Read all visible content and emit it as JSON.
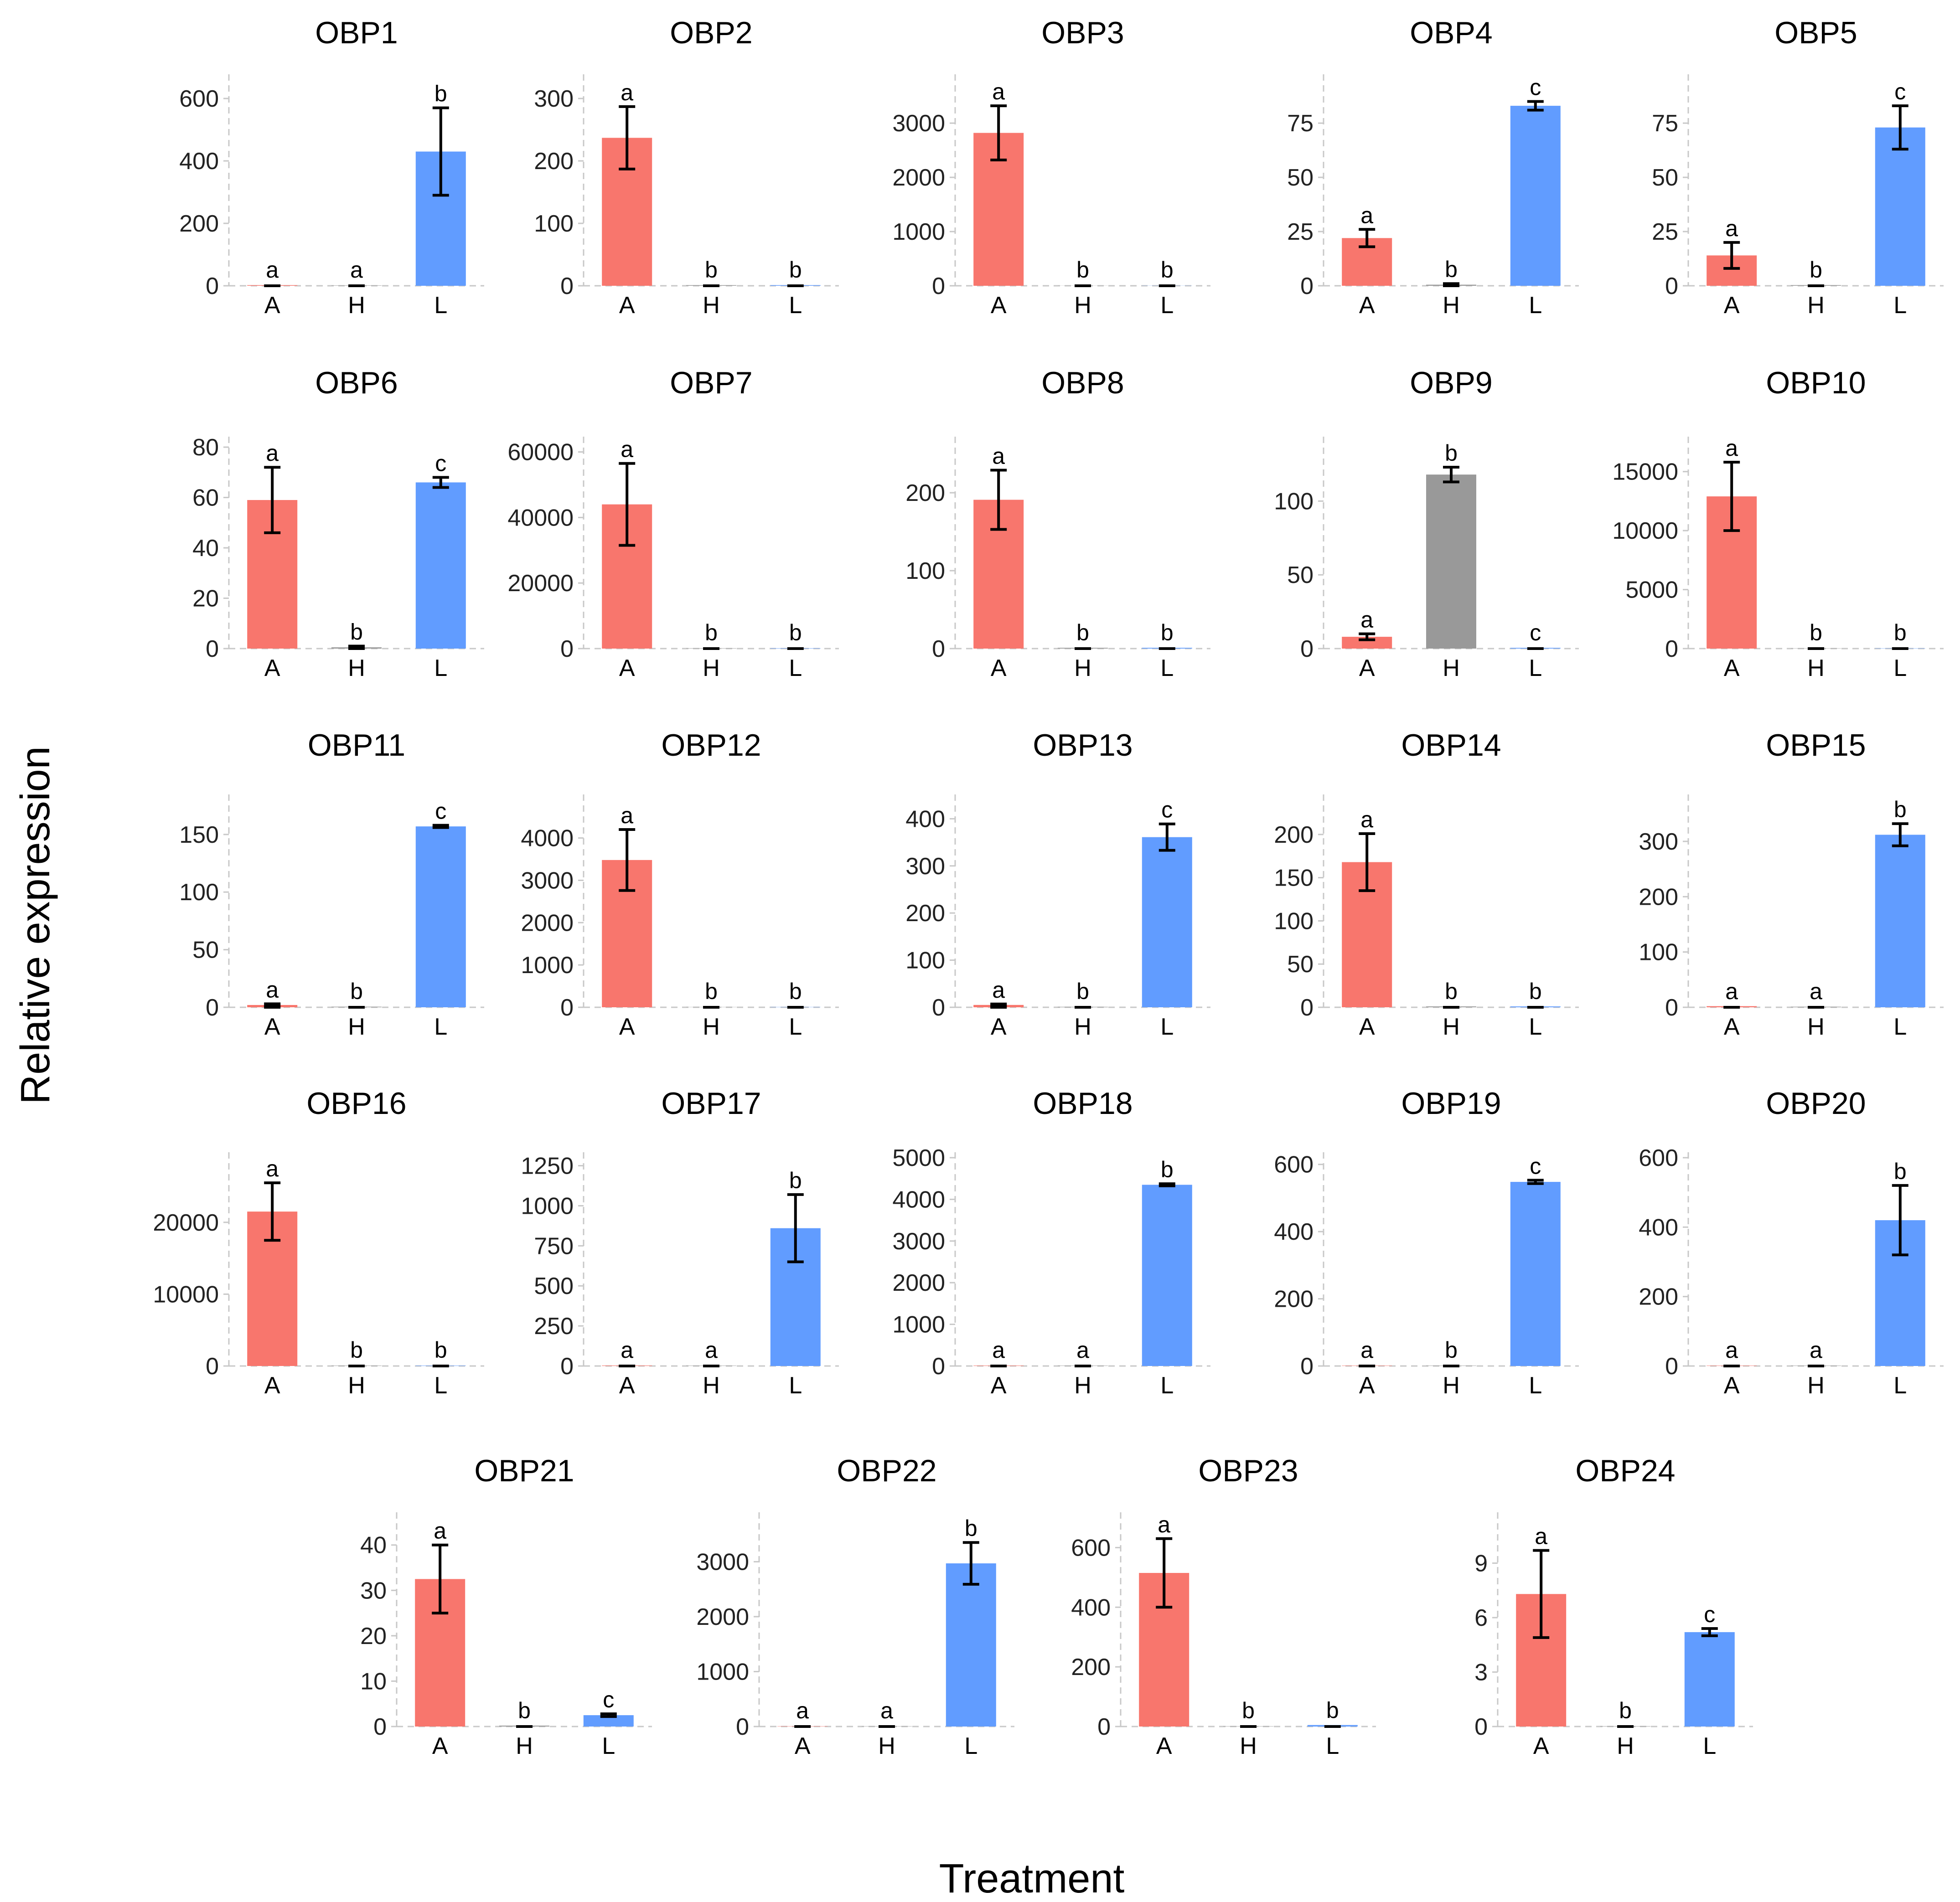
{
  "figure": {
    "ylabel": "Relative expression",
    "xlabel": "Treatment",
    "colors": {
      "A": "#F8766D",
      "H": "#999999",
      "L": "#619CFF"
    }
  },
  "chart_data": [
    {
      "type": "bar",
      "title": "OBP1",
      "categories": [
        "A",
        "H",
        "L"
      ],
      "values": [
        2,
        1,
        430
      ],
      "errors": [
        1,
        1,
        140
      ],
      "letters": [
        "a",
        "a",
        "b"
      ],
      "yticks": [
        0,
        200,
        400,
        600
      ],
      "ylim": [
        0,
        660
      ]
    },
    {
      "type": "bar",
      "title": "OBP2",
      "categories": [
        "A",
        "H",
        "L"
      ],
      "values": [
        237,
        1,
        1
      ],
      "errors": [
        50,
        1,
        1
      ],
      "letters": [
        "a",
        "b",
        "b"
      ],
      "yticks": [
        0,
        100,
        200,
        300
      ],
      "ylim": [
        0,
        330
      ]
    },
    {
      "type": "bar",
      "title": "OBP3",
      "categories": [
        "A",
        "H",
        "L"
      ],
      "values": [
        2820,
        2,
        2
      ],
      "errors": [
        500,
        2,
        2
      ],
      "letters": [
        "a",
        "b",
        "b"
      ],
      "yticks": [
        0,
        1000,
        2000,
        3000
      ],
      "ylim": [
        0,
        3800
      ]
    },
    {
      "type": "bar",
      "title": "OBP4",
      "categories": [
        "A",
        "H",
        "L"
      ],
      "values": [
        22,
        0.5,
        83
      ],
      "errors": [
        4,
        0.5,
        2
      ],
      "letters": [
        "a",
        "b",
        "c"
      ],
      "yticks": [
        0,
        25,
        50,
        75
      ],
      "ylim": [
        0,
        95
      ]
    },
    {
      "type": "bar",
      "title": "OBP5",
      "categories": [
        "A",
        "H",
        "L"
      ],
      "values": [
        14,
        0.3,
        73
      ],
      "errors": [
        6,
        0.3,
        10
      ],
      "letters": [
        "a",
        "b",
        "c"
      ],
      "yticks": [
        0,
        25,
        50,
        75
      ],
      "ylim": [
        0,
        95
      ]
    },
    {
      "type": "bar",
      "title": "OBP6",
      "categories": [
        "A",
        "H",
        "L"
      ],
      "values": [
        59,
        0.5,
        66
      ],
      "errors": [
        13,
        0.5,
        2
      ],
      "letters": [
        "a",
        "b",
        "c"
      ],
      "yticks": [
        0,
        20,
        40,
        60,
        80
      ],
      "ylim": [
        0,
        82
      ]
    },
    {
      "type": "bar",
      "title": "OBP7",
      "categories": [
        "A",
        "H",
        "L"
      ],
      "values": [
        44000,
        100,
        100
      ],
      "errors": [
        12500,
        100,
        100
      ],
      "letters": [
        "a",
        "b",
        "b"
      ],
      "yticks": [
        0,
        20000,
        40000,
        60000
      ],
      "ylim": [
        0,
        63000
      ]
    },
    {
      "type": "bar",
      "title": "OBP8",
      "categories": [
        "A",
        "H",
        "L"
      ],
      "values": [
        191,
        1,
        1
      ],
      "errors": [
        38,
        1,
        1
      ],
      "letters": [
        "a",
        "b",
        "b"
      ],
      "yticks": [
        0,
        100,
        200
      ],
      "ylim": [
        0,
        265
      ]
    },
    {
      "type": "bar",
      "title": "OBP9",
      "categories": [
        "A",
        "H",
        "L"
      ],
      "values": [
        8,
        118,
        0.5
      ],
      "errors": [
        2,
        5,
        0.5
      ],
      "letters": [
        "a",
        "b",
        "c"
      ],
      "yticks": [
        0,
        50,
        100
      ],
      "ylim": [
        0,
        140
      ]
    },
    {
      "type": "bar",
      "title": "OBP10",
      "categories": [
        "A",
        "H",
        "L"
      ],
      "values": [
        12900,
        20,
        20
      ],
      "errors": [
        2900,
        20,
        20
      ],
      "letters": [
        "a",
        "b",
        "b"
      ],
      "yticks": [
        0,
        5000,
        10000,
        15000
      ],
      "ylim": [
        0,
        17500
      ]
    },
    {
      "type": "bar",
      "title": "OBP11",
      "categories": [
        "A",
        "H",
        "L"
      ],
      "values": [
        2,
        0.5,
        157
      ],
      "errors": [
        1,
        0.5,
        1
      ],
      "letters": [
        "a",
        "b",
        "c"
      ],
      "yticks": [
        0,
        50,
        100,
        150
      ],
      "ylim": [
        0,
        180
      ]
    },
    {
      "type": "bar",
      "title": "OBP12",
      "categories": [
        "A",
        "H",
        "L"
      ],
      "values": [
        3480,
        5,
        5
      ],
      "errors": [
        720,
        5,
        5
      ],
      "letters": [
        "a",
        "b",
        "b"
      ],
      "yticks": [
        0,
        1000,
        2000,
        3000,
        4000
      ],
      "ylim": [
        0,
        4900
      ]
    },
    {
      "type": "bar",
      "title": "OBP13",
      "categories": [
        "A",
        "H",
        "L"
      ],
      "values": [
        5,
        1,
        361
      ],
      "errors": [
        2,
        1,
        28
      ],
      "letters": [
        "a",
        "b",
        "c"
      ],
      "yticks": [
        0,
        100,
        200,
        300,
        400
      ],
      "ylim": [
        0,
        440
      ]
    },
    {
      "type": "bar",
      "title": "OBP14",
      "categories": [
        "A",
        "H",
        "L"
      ],
      "values": [
        168,
        1,
        1
      ],
      "errors": [
        33,
        1,
        1
      ],
      "letters": [
        "a",
        "b",
        "b"
      ],
      "yticks": [
        0,
        50,
        100,
        150,
        200
      ],
      "ylim": [
        0,
        240
      ]
    },
    {
      "type": "bar",
      "title": "OBP15",
      "categories": [
        "A",
        "H",
        "L"
      ],
      "values": [
        2,
        1,
        312
      ],
      "errors": [
        1,
        1,
        20
      ],
      "letters": [
        "a",
        "a",
        "b"
      ],
      "yticks": [
        0,
        100,
        200,
        300
      ],
      "ylim": [
        0,
        375
      ]
    },
    {
      "type": "bar",
      "title": "OBP16",
      "categories": [
        "A",
        "H",
        "L"
      ],
      "values": [
        21500,
        50,
        50
      ],
      "errors": [
        4000,
        50,
        50
      ],
      "letters": [
        "a",
        "b",
        "b"
      ],
      "yticks": [
        0,
        10000,
        20000
      ],
      "ylim": [
        0,
        29000
      ]
    },
    {
      "type": "bar",
      "title": "OBP17",
      "categories": [
        "A",
        "H",
        "L"
      ],
      "values": [
        3,
        2,
        860
      ],
      "errors": [
        2,
        2,
        210
      ],
      "letters": [
        "a",
        "a",
        "b"
      ],
      "yticks": [
        0,
        250,
        500,
        750,
        1000,
        1250
      ],
      "ylim": [
        0,
        1300
      ]
    },
    {
      "type": "bar",
      "title": "OBP18",
      "categories": [
        "A",
        "H",
        "L"
      ],
      "values": [
        10,
        8,
        4350
      ],
      "errors": [
        5,
        5,
        25
      ],
      "letters": [
        "a",
        "a",
        "b"
      ],
      "yticks": [
        0,
        1000,
        2000,
        3000,
        4000,
        5000
      ],
      "ylim": [
        0,
        5000
      ]
    },
    {
      "type": "bar",
      "title": "OBP19",
      "categories": [
        "A",
        "H",
        "L"
      ],
      "values": [
        1,
        1,
        548
      ],
      "errors": [
        1,
        1,
        5
      ],
      "letters": [
        "a",
        "b",
        "c"
      ],
      "yticks": [
        0,
        200,
        400,
        600
      ],
      "ylim": [
        0,
        620
      ]
    },
    {
      "type": "bar",
      "title": "OBP20",
      "categories": [
        "A",
        "H",
        "L"
      ],
      "values": [
        1,
        1,
        420
      ],
      "errors": [
        1,
        1,
        100
      ],
      "letters": [
        "a",
        "a",
        "b"
      ],
      "yticks": [
        0,
        200,
        400,
        600
      ],
      "ylim": [
        0,
        600
      ]
    },
    {
      "type": "bar",
      "title": "OBP21",
      "categories": [
        "A",
        "H",
        "L"
      ],
      "values": [
        32.5,
        0.2,
        2.5
      ],
      "errors": [
        7.5,
        0.2,
        0.3
      ],
      "letters": [
        "a",
        "b",
        "c"
      ],
      "yticks": [
        0,
        10,
        20,
        30,
        40
      ],
      "ylim": [
        0,
        46
      ]
    },
    {
      "type": "bar",
      "title": "OBP22",
      "categories": [
        "A",
        "H",
        "L"
      ],
      "values": [
        5,
        5,
        2970
      ],
      "errors": [
        3,
        3,
        380
      ],
      "letters": [
        "a",
        "a",
        "b"
      ],
      "yticks": [
        0,
        1000,
        2000,
        3000
      ],
      "ylim": [
        0,
        3800
      ]
    },
    {
      "type": "bar",
      "title": "OBP23",
      "categories": [
        "A",
        "H",
        "L"
      ],
      "values": [
        515,
        1,
        5
      ],
      "errors": [
        115,
        1,
        2
      ],
      "letters": [
        "a",
        "b",
        "b"
      ],
      "yticks": [
        0,
        200,
        400,
        600
      ],
      "ylim": [
        0,
        700
      ]
    },
    {
      "type": "bar",
      "title": "OBP24",
      "categories": [
        "A",
        "H",
        "L"
      ],
      "values": [
        7.3,
        0.02,
        5.2
      ],
      "errors": [
        2.4,
        0.02,
        0.2
      ],
      "letters": [
        "a",
        "b",
        "c"
      ],
      "yticks": [
        0,
        3,
        6,
        9
      ],
      "ylim": [
        0,
        11.5
      ]
    }
  ]
}
